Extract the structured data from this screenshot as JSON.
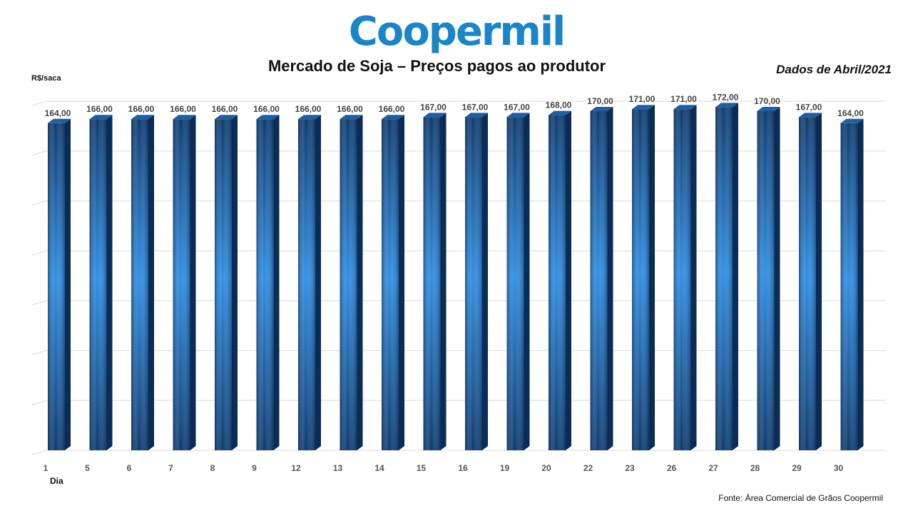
{
  "header": {
    "logo_text": "Coopermil",
    "title": "Mercado de Soja – Preços pagos ao produtor",
    "subtitle": "Dados de Abril/2021"
  },
  "footer": {
    "source": "Fonte:  Área Comercial de Grãos Coopermil"
  },
  "colors": {
    "bar_dark": "#0c3a6e",
    "bar_mid": "#0d4f93",
    "bar_light": "#2f8fe6",
    "bar_side": "#0a2c55",
    "bar_top": "#1f5f9f",
    "grid": "#d9d9d9",
    "logo": "#1a86c7"
  },
  "chart_data": {
    "type": "bar",
    "style": "3d-cylinder-bars",
    "xlabel": "Dia",
    "ylabel": "R$/saca",
    "categories": [
      "1",
      "5",
      "6",
      "7",
      "8",
      "9",
      "12",
      "13",
      "14",
      "15",
      "16",
      "19",
      "20",
      "22",
      "23",
      "26",
      "27",
      "28",
      "29",
      "30"
    ],
    "values": [
      164,
      166,
      166,
      166,
      166,
      166,
      166,
      166,
      166,
      167,
      167,
      167,
      168,
      170,
      171,
      171,
      172,
      170,
      167,
      164
    ],
    "value_labels": [
      "164,00",
      "166,00",
      "166,00",
      "166,00",
      "166,00",
      "166,00",
      "166,00",
      "166,00",
      "166,00",
      "167,00",
      "167,00",
      "167,00",
      "168,00",
      "170,00",
      "171,00",
      "171,00",
      "172,00",
      "170,00",
      "167,00",
      "164,00"
    ],
    "ylim": [
      0,
      200
    ],
    "grid": true,
    "legend": "none"
  }
}
